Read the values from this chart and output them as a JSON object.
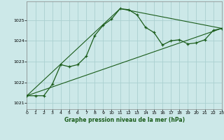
{
  "title": "Graphe pression niveau de la mer (hPa)",
  "bg_color": "#cce8e8",
  "grid_color": "#aad0d0",
  "line_color": "#1a5c1a",
  "x_min": 0,
  "x_max": 23,
  "y_min": 1020.7,
  "y_max": 1025.9,
  "y_ticks": [
    1021,
    1022,
    1023,
    1024,
    1025
  ],
  "x_ticks": [
    0,
    1,
    2,
    3,
    4,
    5,
    6,
    7,
    8,
    9,
    10,
    11,
    12,
    13,
    14,
    15,
    16,
    17,
    18,
    19,
    20,
    21,
    22,
    23
  ],
  "series1_x": [
    0,
    1,
    2,
    3,
    4,
    5,
    6,
    7,
    8,
    9,
    10,
    11,
    12,
    13,
    14,
    15,
    16,
    17,
    18,
    19,
    20,
    21,
    22,
    23
  ],
  "series1_y": [
    1021.35,
    1021.35,
    1021.35,
    1021.9,
    1022.85,
    1022.75,
    1022.85,
    1023.25,
    1024.25,
    1024.75,
    1025.05,
    1025.55,
    1025.5,
    1025.25,
    1024.65,
    1024.4,
    1023.8,
    1024.0,
    1024.05,
    1023.85,
    1023.9,
    1024.05,
    1024.5,
    1024.6
  ],
  "series2_x": [
    0,
    23
  ],
  "series2_y": [
    1021.35,
    1024.6
  ],
  "series3_x": [
    0,
    11,
    23
  ],
  "series3_y": [
    1021.35,
    1025.55,
    1024.6
  ]
}
